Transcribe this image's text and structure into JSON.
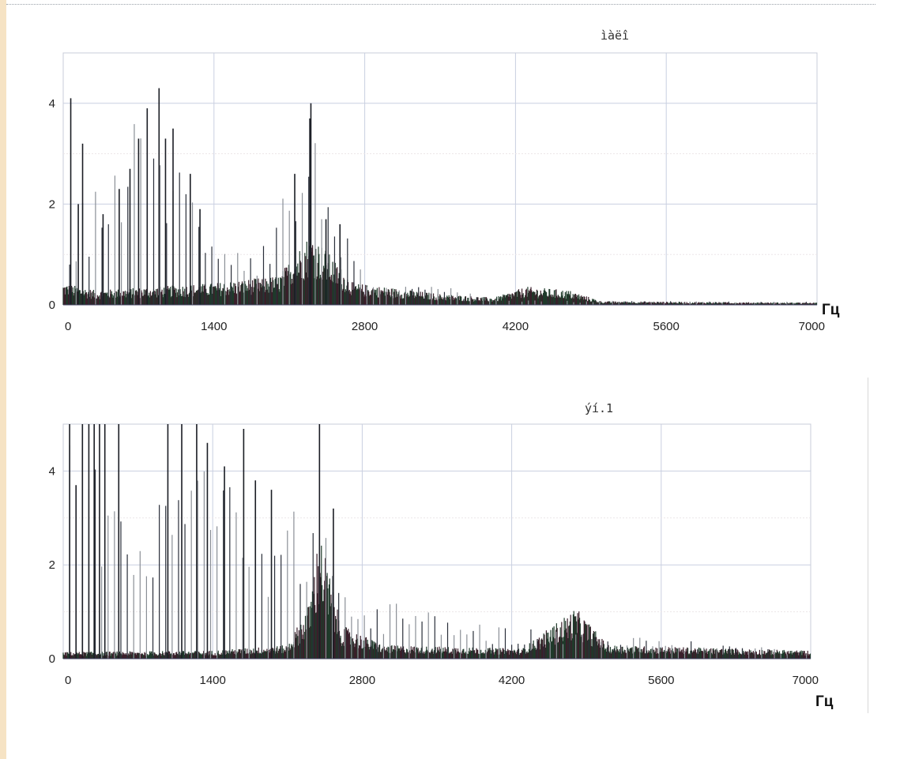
{
  "chart_data": [
    {
      "type": "bar",
      "title": "ìàëî",
      "x_unit": "Гц",
      "xlim": [
        0,
        7000
      ],
      "ylim": [
        0,
        5
      ],
      "x_ticks": [
        "0",
        "1400",
        "2800",
        "4200",
        "5600",
        "7000"
      ],
      "y_ticks": [
        "0",
        "2",
        "4"
      ],
      "grid": true,
      "spectrum": {
        "harmonic_spacing_hz": 60,
        "harmonic_peaks": [
          {
            "x": 70,
            "y": 4.1
          },
          {
            "x": 140,
            "y": 2.0
          },
          {
            "x": 180,
            "y": 3.2
          },
          {
            "x": 370,
            "y": 1.8
          },
          {
            "x": 520,
            "y": 2.3
          },
          {
            "x": 620,
            "y": 2.7
          },
          {
            "x": 700,
            "y": 3.3
          },
          {
            "x": 780,
            "y": 3.9
          },
          {
            "x": 890,
            "y": 4.3
          },
          {
            "x": 950,
            "y": 3.3
          },
          {
            "x": 1020,
            "y": 3.5
          },
          {
            "x": 1180,
            "y": 2.6
          },
          {
            "x": 1270,
            "y": 1.9
          },
          {
            "x": 2150,
            "y": 2.6
          },
          {
            "x": 2290,
            "y": 3.7
          },
          {
            "x": 2300,
            "y": 4.0
          },
          {
            "x": 2440,
            "y": 1.7
          },
          {
            "x": 2570,
            "y": 1.6
          }
        ],
        "noise_floor": [
          {
            "x": 0,
            "y": 0.3
          },
          {
            "x": 300,
            "y": 0.2
          },
          {
            "x": 1400,
            "y": 0.3
          },
          {
            "x": 2000,
            "y": 0.4
          },
          {
            "x": 2300,
            "y": 1.0
          },
          {
            "x": 2700,
            "y": 0.3
          },
          {
            "x": 3500,
            "y": 0.15
          },
          {
            "x": 4000,
            "y": 0.1
          },
          {
            "x": 4300,
            "y": 0.25
          },
          {
            "x": 4700,
            "y": 0.2
          },
          {
            "x": 5000,
            "y": 0.05
          },
          {
            "x": 7000,
            "y": 0.03
          }
        ],
        "harmonic_envelope": [
          {
            "x": 0,
            "y": 1.2
          },
          {
            "x": 800,
            "y": 3.5
          },
          {
            "x": 1300,
            "y": 1.6
          },
          {
            "x": 1800,
            "y": 1.0
          },
          {
            "x": 2300,
            "y": 3.0
          },
          {
            "x": 2650,
            "y": 1.4
          },
          {
            "x": 2800,
            "y": 0.3
          },
          {
            "x": 3600,
            "y": 0.3
          },
          {
            "x": 4000,
            "y": 0.08
          },
          {
            "x": 7000,
            "y": 0.05
          }
        ]
      }
    },
    {
      "type": "bar",
      "title": "ýí.1",
      "x_unit": "Гц",
      "xlim": [
        0,
        7000
      ],
      "ylim": [
        0,
        5
      ],
      "x_ticks": [
        "0",
        "1400",
        "2800",
        "4200",
        "5600",
        "7000"
      ],
      "y_ticks": [
        "0",
        "2",
        "4"
      ],
      "grid": true,
      "spectrum": {
        "harmonic_spacing_hz": 60,
        "harmonic_peaks": [
          {
            "x": 60,
            "y": 5.0
          },
          {
            "x": 120,
            "y": 3.7
          },
          {
            "x": 180,
            "y": 5.0
          },
          {
            "x": 240,
            "y": 5.0
          },
          {
            "x": 290,
            "y": 5.0
          },
          {
            "x": 340,
            "y": 5.0
          },
          {
            "x": 390,
            "y": 5.0
          },
          {
            "x": 520,
            "y": 5.0
          },
          {
            "x": 980,
            "y": 5.0
          },
          {
            "x": 1110,
            "y": 5.0
          },
          {
            "x": 1250,
            "y": 5.0
          },
          {
            "x": 1350,
            "y": 4.6
          },
          {
            "x": 1510,
            "y": 4.1
          },
          {
            "x": 1690,
            "y": 4.9
          },
          {
            "x": 1800,
            "y": 3.8
          },
          {
            "x": 1950,
            "y": 3.6
          },
          {
            "x": 2400,
            "y": 5.0
          },
          {
            "x": 2530,
            "y": 3.2
          }
        ],
        "noise_floor": [
          {
            "x": 0,
            "y": 0.1
          },
          {
            "x": 1400,
            "y": 0.12
          },
          {
            "x": 2100,
            "y": 0.2
          },
          {
            "x": 2300,
            "y": 0.8
          },
          {
            "x": 2400,
            "y": 1.9
          },
          {
            "x": 2600,
            "y": 0.5
          },
          {
            "x": 3000,
            "y": 0.2
          },
          {
            "x": 4300,
            "y": 0.15
          },
          {
            "x": 4800,
            "y": 0.75
          },
          {
            "x": 5100,
            "y": 0.2
          },
          {
            "x": 7000,
            "y": 0.12
          }
        ],
        "harmonic_envelope": [
          {
            "x": 0,
            "y": 4.0
          },
          {
            "x": 500,
            "y": 3.5
          },
          {
            "x": 800,
            "y": 2.3
          },
          {
            "x": 1100,
            "y": 3.8
          },
          {
            "x": 1500,
            "y": 3.5
          },
          {
            "x": 2000,
            "y": 2.4
          },
          {
            "x": 2400,
            "y": 3.0
          },
          {
            "x": 2700,
            "y": 1.0
          },
          {
            "x": 3200,
            "y": 1.0
          },
          {
            "x": 4000,
            "y": 0.6
          },
          {
            "x": 4800,
            "y": 0.5
          },
          {
            "x": 5600,
            "y": 0.35
          },
          {
            "x": 7000,
            "y": 0.15
          }
        ]
      }
    }
  ]
}
